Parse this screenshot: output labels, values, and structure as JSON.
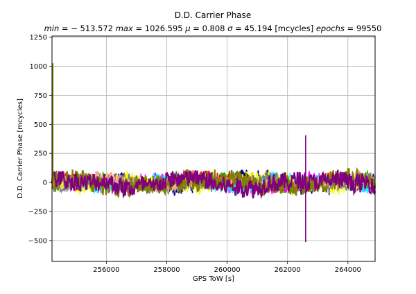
{
  "chart_data": {
    "type": "line",
    "title": "D.D. Carrier Phase",
    "subtitle": "min = −513.572 max = 1026.595 μ = 0.808 σ = 45.194 [mcycles] epochs = 99550",
    "stats": {
      "min_label": "min",
      "min": "− 513.572",
      "max_label": "max",
      "max": "1026.595",
      "mu_label": "μ",
      "mu": "0.808",
      "sigma_label": "σ",
      "sigma": "45.194",
      "units": "[mcycles]",
      "epochs_label": "epochs",
      "epochs": "99550"
    },
    "xlabel": "GPS ToW [s]",
    "ylabel": "D.D. Carrier Phase [mcycles]",
    "xlim": [
      254200,
      264900
    ],
    "ylim": [
      -680,
      1260
    ],
    "xticks": [
      256000,
      258000,
      260000,
      262000,
      264000
    ],
    "yticks": [
      -500,
      -250,
      0,
      250,
      500,
      750,
      1000,
      1250
    ],
    "grid": true,
    "legend": "none",
    "series_colors": [
      "#000080",
      "#00cc00",
      "#ff0000",
      "#ff00ff",
      "#00ffff",
      "#ffff00",
      "#808080",
      "#ffa0a0",
      "#808000",
      "#800080"
    ],
    "spikes": [
      {
        "x": 254230,
        "y_min": -60,
        "y_max": 1026.595,
        "color": "#808000"
      },
      {
        "x": 262600,
        "y_min": -513.572,
        "y_max": 405,
        "color": "#800080"
      }
    ]
  }
}
